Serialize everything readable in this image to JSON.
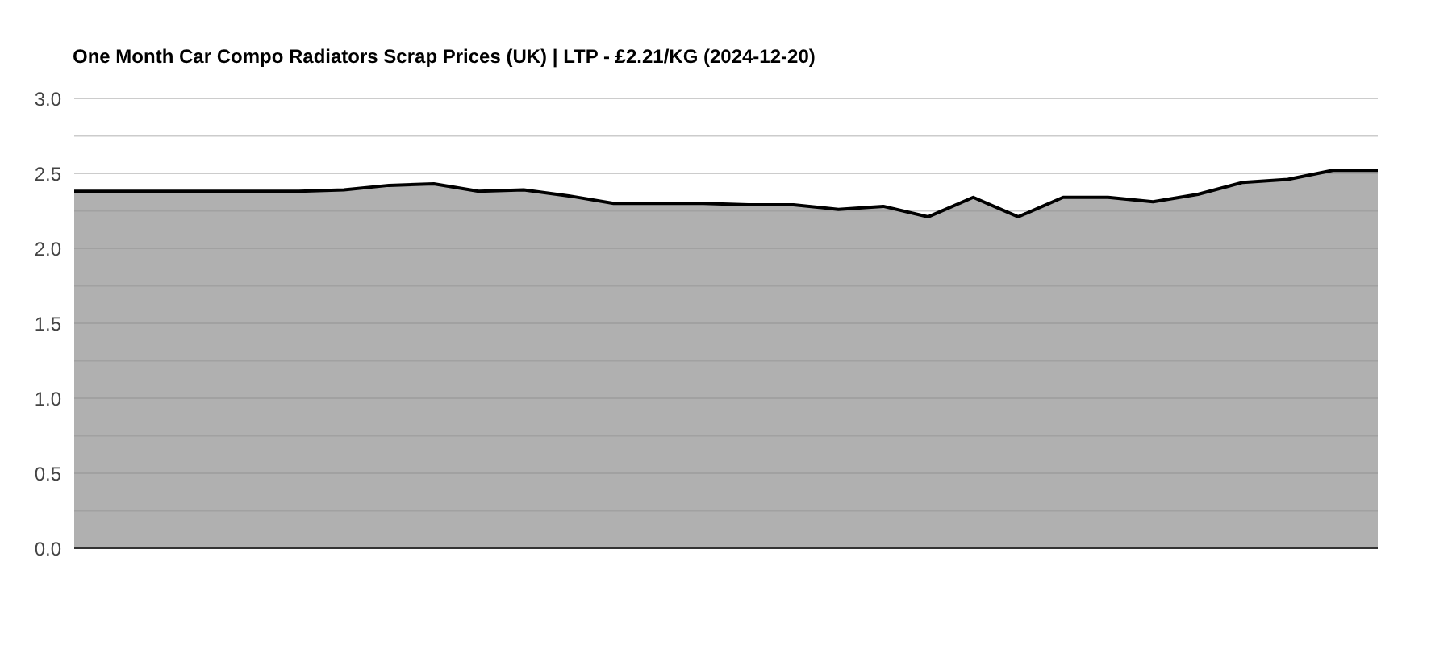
{
  "chart_data": {
    "type": "area",
    "title": "One Month Car Compo Radiators Scrap Prices (UK) | LTP - £2.21/KG (2024-12-20)",
    "categories": [
      null,
      null,
      null,
      null,
      null,
      null,
      null,
      null,
      null,
      null,
      null,
      null,
      null,
      null,
      null,
      null,
      null,
      null,
      null,
      null,
      null,
      null,
      null,
      null,
      null,
      null,
      null,
      null,
      null,
      null
    ],
    "series": [
      {
        "color": "#000000",
        "values": [
          2.38,
          2.38,
          2.38,
          2.38,
          2.38,
          2.38,
          2.39,
          2.42,
          2.43,
          2.38,
          2.39,
          2.35,
          2.3,
          2.3,
          2.3,
          2.29,
          2.29,
          2.26,
          2.28,
          2.21,
          2.34,
          2.21,
          2.34,
          2.34,
          2.31,
          2.36,
          2.44,
          2.46,
          2.52,
          2.52
        ]
      }
    ],
    "ylim": [
      0,
      3
    ],
    "yticks": [
      {
        "value": 0,
        "label": "0.0"
      },
      {
        "value": 0.25,
        "label": null
      },
      {
        "value": 0.5,
        "label": "0.5"
      },
      {
        "value": 0.75,
        "label": null
      },
      {
        "value": 1,
        "label": "1.0"
      },
      {
        "value": 1.25,
        "label": null
      },
      {
        "value": 1.5,
        "label": "1.5"
      },
      {
        "value": 1.75,
        "label": null
      },
      {
        "value": 2,
        "label": "2.0"
      },
      {
        "value": 2.25,
        "label": null
      },
      {
        "value": 2.5,
        "label": "2.5"
      },
      {
        "value": 2.75,
        "label": null
      },
      {
        "value": 3,
        "label": "3.0"
      }
    ],
    "grid": "y"
  }
}
